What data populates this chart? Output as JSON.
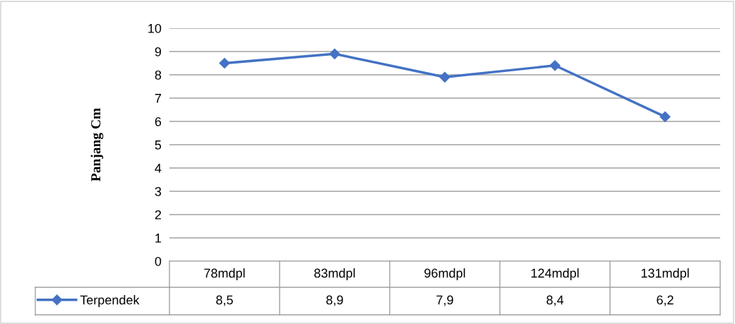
{
  "chart_data": {
    "type": "line",
    "ylabel": "Panjang Cm",
    "categories": [
      "78mdpl",
      "83mdpl",
      "96mdpl",
      "124mdpl",
      "131mdpl"
    ],
    "series": [
      {
        "name": "Terpendek",
        "color": "#4472c4",
        "values": [
          8.5,
          8.9,
          7.9,
          8.4,
          6.2
        ],
        "value_labels": [
          "8,5",
          "8,9",
          "7,9",
          "8,4",
          "6,2"
        ]
      }
    ],
    "ylim": [
      0,
      10
    ],
    "yticks": [
      0,
      1,
      2,
      3,
      4,
      5,
      6,
      7,
      8,
      9,
      10
    ],
    "grid": "y",
    "legend": "bottom",
    "marker": "diamond",
    "line_style": "solid"
  }
}
